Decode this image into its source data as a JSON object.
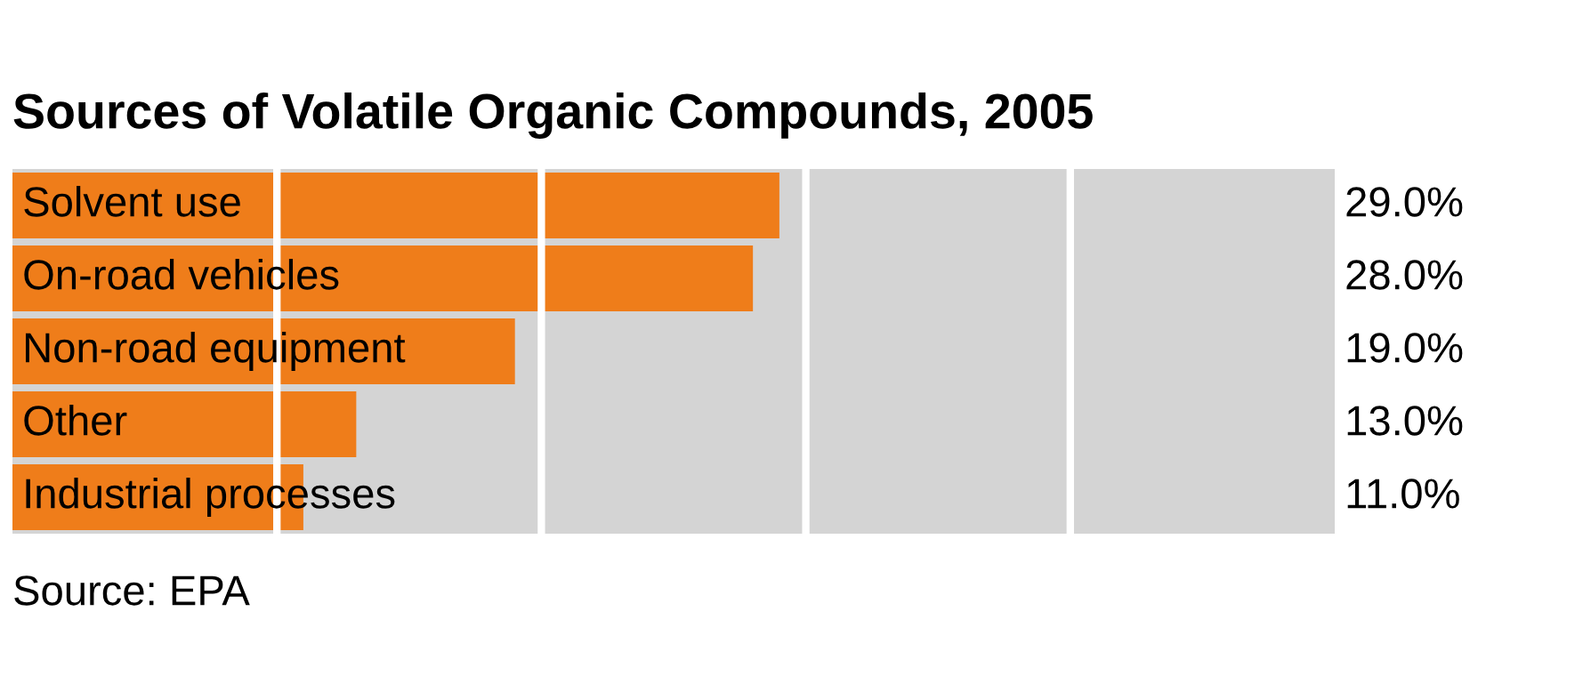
{
  "chart_data": {
    "type": "bar",
    "orientation": "horizontal",
    "title": "Sources of Volatile Organic Compounds, 2005",
    "categories": [
      "Solvent use",
      "On-road vehicles",
      "Non-road equipment",
      "Other",
      "Industrial processes"
    ],
    "values": [
      29.0,
      28.0,
      19.0,
      13.0,
      11.0
    ],
    "color": "#ef7d1a",
    "value_labels": [
      "29.0%",
      "28.0%",
      "19.0%",
      "13.0%",
      "11.0%"
    ],
    "xlim": [
      0,
      50
    ],
    "xticks": [
      {
        "value": 10,
        "label": null
      },
      {
        "value": 20,
        "label": null
      },
      {
        "value": 30,
        "label": null
      },
      {
        "value": 40,
        "label": null
      }
    ],
    "grid": "x",
    "tick_labels": "y",
    "annotations": [
      "Source: EPA"
    ]
  }
}
